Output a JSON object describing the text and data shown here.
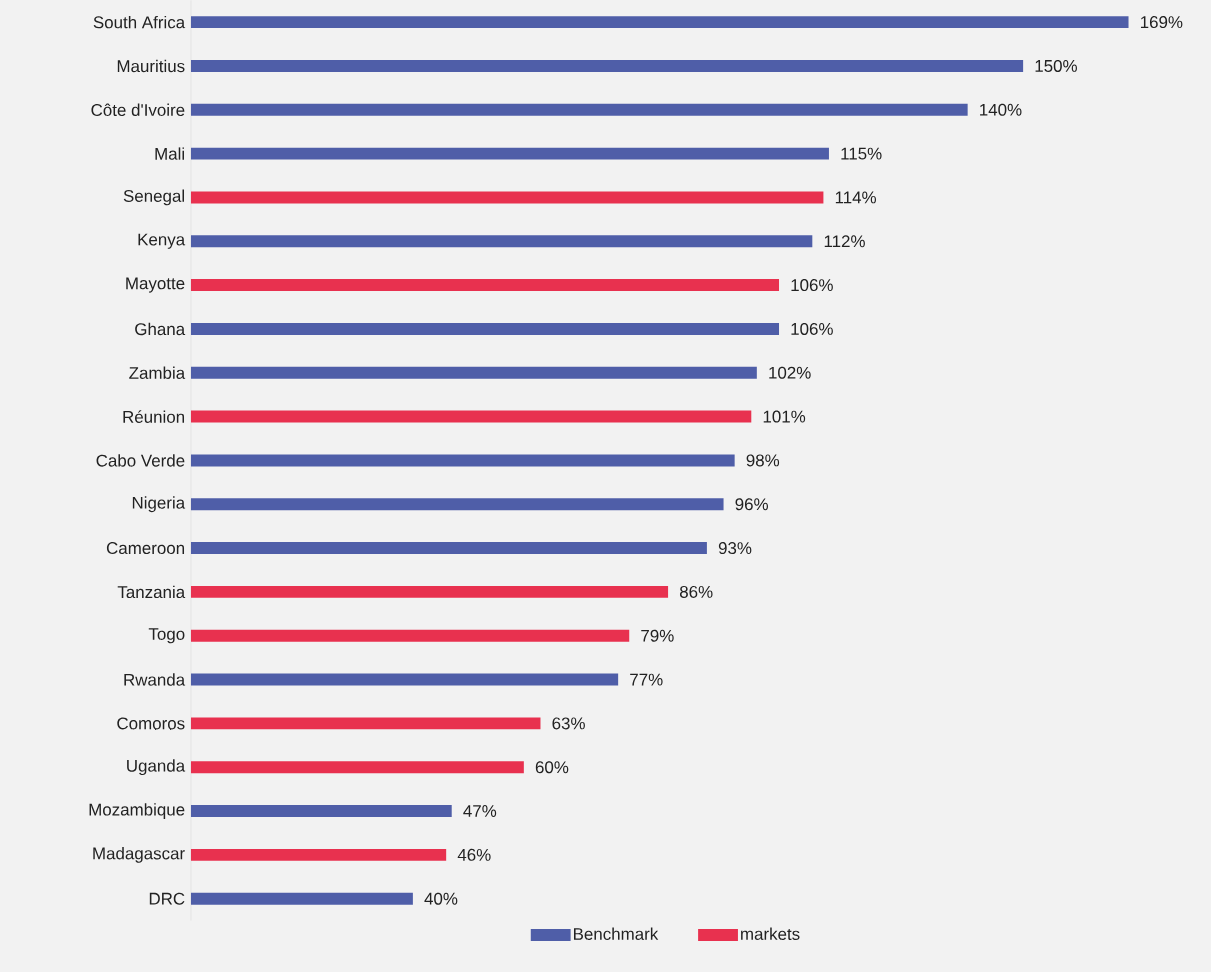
{
  "chart_data": {
    "type": "bar",
    "orientation": "horizontal",
    "stacked": true,
    "legend": "bottom",
    "categories": [
      "South Africa",
      "Mauritius",
      "Côte d'Ivoire",
      "Mali",
      "Senegal",
      "Kenya",
      "Mayotte",
      "Ghana",
      "Zambia",
      "Réunion",
      "Cabo Verde",
      "Nigeria",
      "Cameroon",
      "Tanzania",
      "Togo",
      "Rwanda",
      "Comoros",
      "Uganda",
      "Mozambique",
      "Madagascar",
      "DRC"
    ],
    "series": [
      {
        "name": "Benchmark",
        "color": "#4f5ea8",
        "values": [
          169,
          150,
          140,
          115,
          null,
          112,
          null,
          106,
          102,
          null,
          98,
          96,
          93,
          null,
          null,
          77,
          null,
          null,
          47,
          null,
          40
        ],
        "value_labels": [
          "169%",
          "150%",
          "140%",
          "115%",
          null,
          "112%",
          null,
          "106%",
          "102%",
          null,
          "98%",
          "96%",
          "93%",
          null,
          null,
          "77%",
          null,
          null,
          "47%",
          null,
          "40%"
        ]
      },
      {
        "name": "markets",
        "color": "#e8314f",
        "values": [
          null,
          null,
          null,
          null,
          114,
          null,
          106,
          null,
          null,
          101,
          null,
          null,
          null,
          86,
          79,
          null,
          63,
          60,
          null,
          46,
          null
        ],
        "value_labels": [
          null,
          null,
          null,
          null,
          "114%",
          null,
          "106%",
          null,
          null,
          "101%",
          null,
          null,
          null,
          "86%",
          "79%",
          null,
          "63%",
          "60%",
          null,
          "46%",
          null
        ]
      }
    ]
  }
}
